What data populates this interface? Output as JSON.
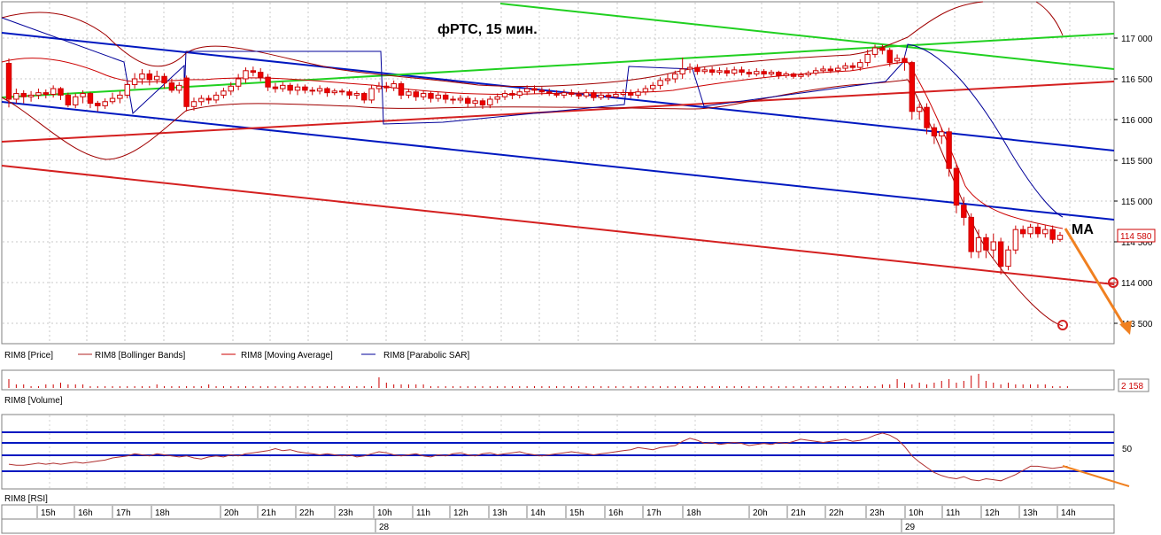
{
  "chart_data": {
    "type": "candlestick",
    "title": "фРТС, 15 мин.",
    "annotation_ma": "MA",
    "price_axis": {
      "ticks": [
        113500,
        114000,
        114500,
        115000,
        115500,
        116000,
        116500,
        117000
      ],
      "labels": [
        "113 500",
        "114 000",
        "114 500",
        "115 000",
        "115 500",
        "116 000",
        "116 500",
        "117 000"
      ],
      "ylim": [
        113300,
        117400
      ],
      "last_price": 114580,
      "last_price_label": "114 580"
    },
    "legend": [
      {
        "name": "RIM8 [Price]",
        "color": "#ff0000"
      },
      {
        "name": "RIM8 [Bollinger Bands]",
        "color": "#b22222"
      },
      {
        "name": "RIM8 [Moving Average]",
        "color": "#cc0000"
      },
      {
        "name": "RIM8 [Parabolic SAR]",
        "color": "#000099"
      }
    ],
    "volume": {
      "label": "RIM8 [Volume]",
      "last_label": "2 158",
      "values": [
        5,
        2,
        2,
        1,
        1,
        2,
        2,
        3,
        2,
        2,
        2,
        1,
        1,
        1,
        1,
        1,
        1,
        1,
        1,
        1,
        2,
        1,
        1,
        1,
        1,
        1,
        1,
        2,
        1,
        1,
        1,
        1,
        1,
        1,
        1,
        1,
        1,
        1,
        1,
        1,
        1,
        1,
        1,
        1,
        1,
        1,
        1,
        1,
        1,
        1,
        6,
        3,
        2,
        2,
        2,
        2,
        2,
        1,
        1,
        1,
        1,
        1,
        1,
        1,
        1,
        1,
        1,
        1,
        1,
        1,
        1,
        1,
        1,
        1,
        1,
        1,
        1,
        1,
        1,
        1,
        1,
        1,
        1,
        1,
        1,
        1,
        1,
        1,
        1,
        1,
        1,
        1,
        1,
        1,
        1,
        1,
        1,
        1,
        1,
        1,
        1,
        1,
        1,
        1,
        1,
        1,
        1,
        1,
        1,
        1,
        1,
        1,
        1,
        1,
        1,
        1,
        1,
        1,
        2,
        2,
        5,
        3,
        2,
        3,
        2,
        3,
        4,
        5,
        3,
        4,
        7,
        8,
        4,
        3,
        2,
        3,
        2,
        2,
        2,
        2,
        2,
        1,
        1,
        1
      ]
    },
    "rsi": {
      "label": "RIM8 [RSI]",
      "tick_label": "50",
      "levels": [
        70,
        60,
        50,
        35
      ],
      "ylim": [
        15,
        85
      ],
      "values": [
        38,
        37,
        37,
        38,
        39,
        38,
        39,
        38,
        39,
        40,
        39,
        40,
        41,
        42,
        44,
        45,
        46,
        48,
        47,
        46,
        48,
        47,
        46,
        45,
        46,
        44,
        43,
        45,
        46,
        45,
        47,
        46,
        48,
        49,
        50,
        51,
        53,
        51,
        52,
        50,
        49,
        48,
        47,
        48,
        47,
        46,
        47,
        45,
        46,
        48,
        50,
        49,
        47,
        46,
        47,
        48,
        46,
        45,
        47,
        46,
        48,
        49,
        47,
        46,
        48,
        49,
        47,
        48,
        49,
        50,
        48,
        47,
        46,
        47,
        48,
        49,
        50,
        49,
        48,
        47,
        48,
        49,
        50,
        51,
        52,
        54,
        53,
        52,
        54,
        55,
        56,
        60,
        63,
        61,
        58,
        59,
        57,
        58,
        59,
        58,
        56,
        57,
        58,
        57,
        59,
        58,
        60,
        62,
        61,
        60,
        59,
        60,
        61,
        62,
        60,
        61,
        63,
        66,
        68,
        66,
        62,
        55,
        46,
        40,
        35,
        30,
        27,
        25,
        24,
        26,
        23,
        22,
        24,
        23,
        22,
        25,
        28,
        32,
        36,
        36,
        35,
        34,
        35,
        36
      ]
    },
    "time_axis": {
      "hours": [
        "15h",
        "16h",
        "17h",
        "18h",
        "20h",
        "21h",
        "22h",
        "23h",
        "10h",
        "11h",
        "12h",
        "13h",
        "14h",
        "15h",
        "16h",
        "17h",
        "18h",
        "20h",
        "21h",
        "22h",
        "23h",
        "10h",
        "11h",
        "12h",
        "13h",
        "14h"
      ],
      "days": [
        "28",
        "29"
      ]
    },
    "candles": [
      {
        "o": 116690,
        "c": 116250,
        "h": 116750,
        "l": 116150
      },
      {
        "o": 116250,
        "c": 116320,
        "h": 116380,
        "l": 116200
      },
      {
        "o": 116320,
        "c": 116280,
        "h": 116360,
        "l": 116200
      },
      {
        "o": 116280,
        "c": 116300,
        "h": 116350,
        "l": 116220
      },
      {
        "o": 116300,
        "c": 116330,
        "h": 116380,
        "l": 116250
      },
      {
        "o": 116330,
        "c": 116310,
        "h": 116370,
        "l": 116260
      },
      {
        "o": 116310,
        "c": 116380,
        "h": 116420,
        "l": 116270
      },
      {
        "o": 116380,
        "c": 116300,
        "h": 116400,
        "l": 116240
      },
      {
        "o": 116300,
        "c": 116180,
        "h": 116330,
        "l": 116150
      },
      {
        "o": 116180,
        "c": 116280,
        "h": 116320,
        "l": 116140
      },
      {
        "o": 116280,
        "c": 116320,
        "h": 116360,
        "l": 116200
      },
      {
        "o": 116320,
        "c": 116200,
        "h": 116340,
        "l": 116140
      },
      {
        "o": 116200,
        "c": 116170,
        "h": 116230,
        "l": 116100
      },
      {
        "o": 116170,
        "c": 116220,
        "h": 116260,
        "l": 116130
      },
      {
        "o": 116220,
        "c": 116260,
        "h": 116330,
        "l": 116190
      },
      {
        "o": 116260,
        "c": 116300,
        "h": 116350,
        "l": 116200
      },
      {
        "o": 116300,
        "c": 116430,
        "h": 116480,
        "l": 116260
      },
      {
        "o": 116430,
        "c": 116500,
        "h": 116570,
        "l": 116380
      },
      {
        "o": 116500,
        "c": 116560,
        "h": 116620,
        "l": 116430
      },
      {
        "o": 116560,
        "c": 116490,
        "h": 116610,
        "l": 116420
      },
      {
        "o": 116490,
        "c": 116530,
        "h": 116600,
        "l": 116440
      },
      {
        "o": 116530,
        "c": 116450,
        "h": 116570,
        "l": 116380
      },
      {
        "o": 116450,
        "c": 116360,
        "h": 116500,
        "l": 116330
      },
      {
        "o": 116360,
        "c": 116420,
        "h": 116460,
        "l": 116320
      },
      {
        "o": 116510,
        "c": 116160,
        "h": 116540,
        "l": 116100
      },
      {
        "o": 116160,
        "c": 116220,
        "h": 116270,
        "l": 116110
      },
      {
        "o": 116220,
        "c": 116260,
        "h": 116300,
        "l": 116170
      },
      {
        "o": 116260,
        "c": 116240,
        "h": 116300,
        "l": 116190
      },
      {
        "o": 116240,
        "c": 116300,
        "h": 116340,
        "l": 116200
      },
      {
        "o": 116300,
        "c": 116350,
        "h": 116390,
        "l": 116260
      },
      {
        "o": 116350,
        "c": 116410,
        "h": 116460,
        "l": 116300
      },
      {
        "o": 116410,
        "c": 116500,
        "h": 116560,
        "l": 116360
      },
      {
        "o": 116500,
        "c": 116600,
        "h": 116640,
        "l": 116450
      },
      {
        "o": 116600,
        "c": 116580,
        "h": 116650,
        "l": 116530
      },
      {
        "o": 116580,
        "c": 116520,
        "h": 116630,
        "l": 116470
      },
      {
        "o": 116520,
        "c": 116400,
        "h": 116560,
        "l": 116350
      },
      {
        "o": 116400,
        "c": 116380,
        "h": 116450,
        "l": 116330
      },
      {
        "o": 116380,
        "c": 116420,
        "h": 116460,
        "l": 116340
      },
      {
        "o": 116420,
        "c": 116360,
        "h": 116450,
        "l": 116310
      },
      {
        "o": 116360,
        "c": 116400,
        "h": 116440,
        "l": 116300
      },
      {
        "o": 116400,
        "c": 116360,
        "h": 116430,
        "l": 116320
      },
      {
        "o": 116360,
        "c": 116350,
        "h": 116400,
        "l": 116300
      },
      {
        "o": 116350,
        "c": 116380,
        "h": 116420,
        "l": 116310
      },
      {
        "o": 116380,
        "c": 116330,
        "h": 116400,
        "l": 116280
      },
      {
        "o": 116330,
        "c": 116350,
        "h": 116380,
        "l": 116300
      },
      {
        "o": 116350,
        "c": 116340,
        "h": 116380,
        "l": 116300
      },
      {
        "o": 116340,
        "c": 116300,
        "h": 116370,
        "l": 116250
      },
      {
        "o": 116300,
        "c": 116320,
        "h": 116350,
        "l": 116250
      },
      {
        "o": 116320,
        "c": 116240,
        "h": 116340,
        "l": 116200
      },
      {
        "o": 116240,
        "c": 116380,
        "h": 116420,
        "l": 116200
      },
      {
        "o": 116380,
        "c": 116410,
        "h": 116460,
        "l": 116330
      },
      {
        "o": 116410,
        "c": 116390,
        "h": 116460,
        "l": 116340
      },
      {
        "o": 116390,
        "c": 116440,
        "h": 116480,
        "l": 116350
      },
      {
        "o": 116440,
        "c": 116300,
        "h": 116470,
        "l": 116250
      },
      {
        "o": 116300,
        "c": 116340,
        "h": 116380,
        "l": 116260
      },
      {
        "o": 116340,
        "c": 116280,
        "h": 116370,
        "l": 116230
      },
      {
        "o": 116280,
        "c": 116320,
        "h": 116360,
        "l": 116240
      },
      {
        "o": 116320,
        "c": 116260,
        "h": 116350,
        "l": 116210
      },
      {
        "o": 116260,
        "c": 116300,
        "h": 116340,
        "l": 116220
      },
      {
        "o": 116300,
        "c": 116250,
        "h": 116330,
        "l": 116200
      },
      {
        "o": 116250,
        "c": 116240,
        "h": 116290,
        "l": 116190
      },
      {
        "o": 116240,
        "c": 116260,
        "h": 116300,
        "l": 116200
      },
      {
        "o": 116260,
        "c": 116200,
        "h": 116290,
        "l": 116150
      },
      {
        "o": 116200,
        "c": 116230,
        "h": 116270,
        "l": 116160
      },
      {
        "o": 116230,
        "c": 116180,
        "h": 116260,
        "l": 116130
      },
      {
        "o": 116180,
        "c": 116250,
        "h": 116290,
        "l": 116140
      },
      {
        "o": 116250,
        "c": 116280,
        "h": 116320,
        "l": 116200
      },
      {
        "o": 116280,
        "c": 116320,
        "h": 116360,
        "l": 116240
      },
      {
        "o": 116320,
        "c": 116300,
        "h": 116360,
        "l": 116250
      },
      {
        "o": 116300,
        "c": 116340,
        "h": 116380,
        "l": 116260
      },
      {
        "o": 116340,
        "c": 116380,
        "h": 116420,
        "l": 116300
      },
      {
        "o": 116380,
        "c": 116360,
        "h": 116420,
        "l": 116320
      },
      {
        "o": 116360,
        "c": 116340,
        "h": 116400,
        "l": 116300
      },
      {
        "o": 116340,
        "c": 116320,
        "h": 116380,
        "l": 116290
      },
      {
        "o": 116320,
        "c": 116300,
        "h": 116360,
        "l": 116270
      },
      {
        "o": 116300,
        "c": 116330,
        "h": 116370,
        "l": 116260
      },
      {
        "o": 116330,
        "c": 116310,
        "h": 116370,
        "l": 116280
      },
      {
        "o": 116310,
        "c": 116290,
        "h": 116350,
        "l": 116250
      },
      {
        "o": 116290,
        "c": 116330,
        "h": 116370,
        "l": 116260
      },
      {
        "o": 116330,
        "c": 116270,
        "h": 116360,
        "l": 116230
      },
      {
        "o": 116270,
        "c": 116300,
        "h": 116340,
        "l": 116240
      },
      {
        "o": 116300,
        "c": 116280,
        "h": 116330,
        "l": 116240
      },
      {
        "o": 116280,
        "c": 116310,
        "h": 116350,
        "l": 116260
      },
      {
        "o": 116310,
        "c": 116330,
        "h": 116370,
        "l": 116280
      },
      {
        "o": 116330,
        "c": 116300,
        "h": 116370,
        "l": 116260
      },
      {
        "o": 116300,
        "c": 116340,
        "h": 116380,
        "l": 116260
      },
      {
        "o": 116340,
        "c": 116380,
        "h": 116420,
        "l": 116300
      },
      {
        "o": 116380,
        "c": 116420,
        "h": 116460,
        "l": 116340
      },
      {
        "o": 116420,
        "c": 116480,
        "h": 116520,
        "l": 116370
      },
      {
        "o": 116480,
        "c": 116500,
        "h": 116560,
        "l": 116430
      },
      {
        "o": 116500,
        "c": 116560,
        "h": 116600,
        "l": 116450
      },
      {
        "o": 116560,
        "c": 116620,
        "h": 116760,
        "l": 116500
      },
      {
        "o": 116620,
        "c": 116640,
        "h": 116690,
        "l": 116570
      },
      {
        "o": 116640,
        "c": 116590,
        "h": 116680,
        "l": 116550
      },
      {
        "o": 116590,
        "c": 116610,
        "h": 116650,
        "l": 116560
      },
      {
        "o": 116610,
        "c": 116580,
        "h": 116650,
        "l": 116540
      },
      {
        "o": 116580,
        "c": 116600,
        "h": 116640,
        "l": 116550
      },
      {
        "o": 116600,
        "c": 116570,
        "h": 116640,
        "l": 116530
      },
      {
        "o": 116570,
        "c": 116610,
        "h": 116650,
        "l": 116540
      },
      {
        "o": 116610,
        "c": 116580,
        "h": 116650,
        "l": 116540
      },
      {
        "o": 116580,
        "c": 116560,
        "h": 116620,
        "l": 116520
      },
      {
        "o": 116560,
        "c": 116590,
        "h": 116630,
        "l": 116530
      },
      {
        "o": 116590,
        "c": 116560,
        "h": 116620,
        "l": 116520
      },
      {
        "o": 116560,
        "c": 116580,
        "h": 116610,
        "l": 116530
      },
      {
        "o": 116580,
        "c": 116540,
        "h": 116600,
        "l": 116500
      },
      {
        "o": 116540,
        "c": 116560,
        "h": 116590,
        "l": 116510
      },
      {
        "o": 116560,
        "c": 116530,
        "h": 116580,
        "l": 116500
      },
      {
        "o": 116530,
        "c": 116550,
        "h": 116580,
        "l": 116500
      },
      {
        "o": 116550,
        "c": 116570,
        "h": 116600,
        "l": 116520
      },
      {
        "o": 116570,
        "c": 116600,
        "h": 116640,
        "l": 116540
      },
      {
        "o": 116600,
        "c": 116620,
        "h": 116660,
        "l": 116570
      },
      {
        "o": 116620,
        "c": 116600,
        "h": 116660,
        "l": 116570
      },
      {
        "o": 116600,
        "c": 116630,
        "h": 116670,
        "l": 116570
      },
      {
        "o": 116630,
        "c": 116660,
        "h": 116700,
        "l": 116600
      },
      {
        "o": 116660,
        "c": 116640,
        "h": 116700,
        "l": 116600
      },
      {
        "o": 116640,
        "c": 116700,
        "h": 116740,
        "l": 116600
      },
      {
        "o": 116700,
        "c": 116800,
        "h": 116860,
        "l": 116650
      },
      {
        "o": 116800,
        "c": 116880,
        "h": 116920,
        "l": 116760
      },
      {
        "o": 116880,
        "c": 116850,
        "h": 116920,
        "l": 116800
      },
      {
        "o": 116850,
        "c": 116700,
        "h": 116880,
        "l": 116650
      },
      {
        "o": 116720,
        "c": 116750,
        "h": 116800,
        "l": 116680
      },
      {
        "o": 116750,
        "c": 116700,
        "h": 116780,
        "l": 116600
      },
      {
        "o": 116700,
        "c": 116100,
        "h": 116720,
        "l": 116000
      },
      {
        "o": 116100,
        "c": 116150,
        "h": 116200,
        "l": 116000
      },
      {
        "o": 116150,
        "c": 115900,
        "h": 116200,
        "l": 115820
      },
      {
        "o": 115900,
        "c": 115800,
        "h": 115950,
        "l": 115700
      },
      {
        "o": 115800,
        "c": 115850,
        "h": 115900,
        "l": 115700
      },
      {
        "o": 115850,
        "c": 115400,
        "h": 115900,
        "l": 115300
      },
      {
        "o": 115400,
        "c": 114950,
        "h": 115450,
        "l": 114850
      },
      {
        "o": 114950,
        "c": 114800,
        "h": 115050,
        "l": 114700
      },
      {
        "o": 114800,
        "c": 114380,
        "h": 114850,
        "l": 114300
      },
      {
        "o": 114380,
        "c": 114550,
        "h": 114650,
        "l": 114300
      },
      {
        "o": 114550,
        "c": 114400,
        "h": 114600,
        "l": 114300
      },
      {
        "o": 114400,
        "c": 114500,
        "h": 114600,
        "l": 114300
      },
      {
        "o": 114500,
        "c": 114200,
        "h": 114550,
        "l": 114100
      },
      {
        "o": 114200,
        "c": 114400,
        "h": 114450,
        "l": 114150
      },
      {
        "o": 114400,
        "c": 114650,
        "h": 114700,
        "l": 114350
      },
      {
        "o": 114650,
        "c": 114600,
        "h": 114700,
        "l": 114550
      },
      {
        "o": 114600,
        "c": 114680,
        "h": 114720,
        "l": 114550
      },
      {
        "o": 114680,
        "c": 114600,
        "h": 114720,
        "l": 114550
      },
      {
        "o": 114600,
        "c": 114650,
        "h": 114700,
        "l": 114550
      },
      {
        "o": 114650,
        "c": 114530,
        "h": 114700,
        "l": 114480
      },
      {
        "o": 114530,
        "c": 114580,
        "h": 114620,
        "l": 114500
      }
    ]
  }
}
